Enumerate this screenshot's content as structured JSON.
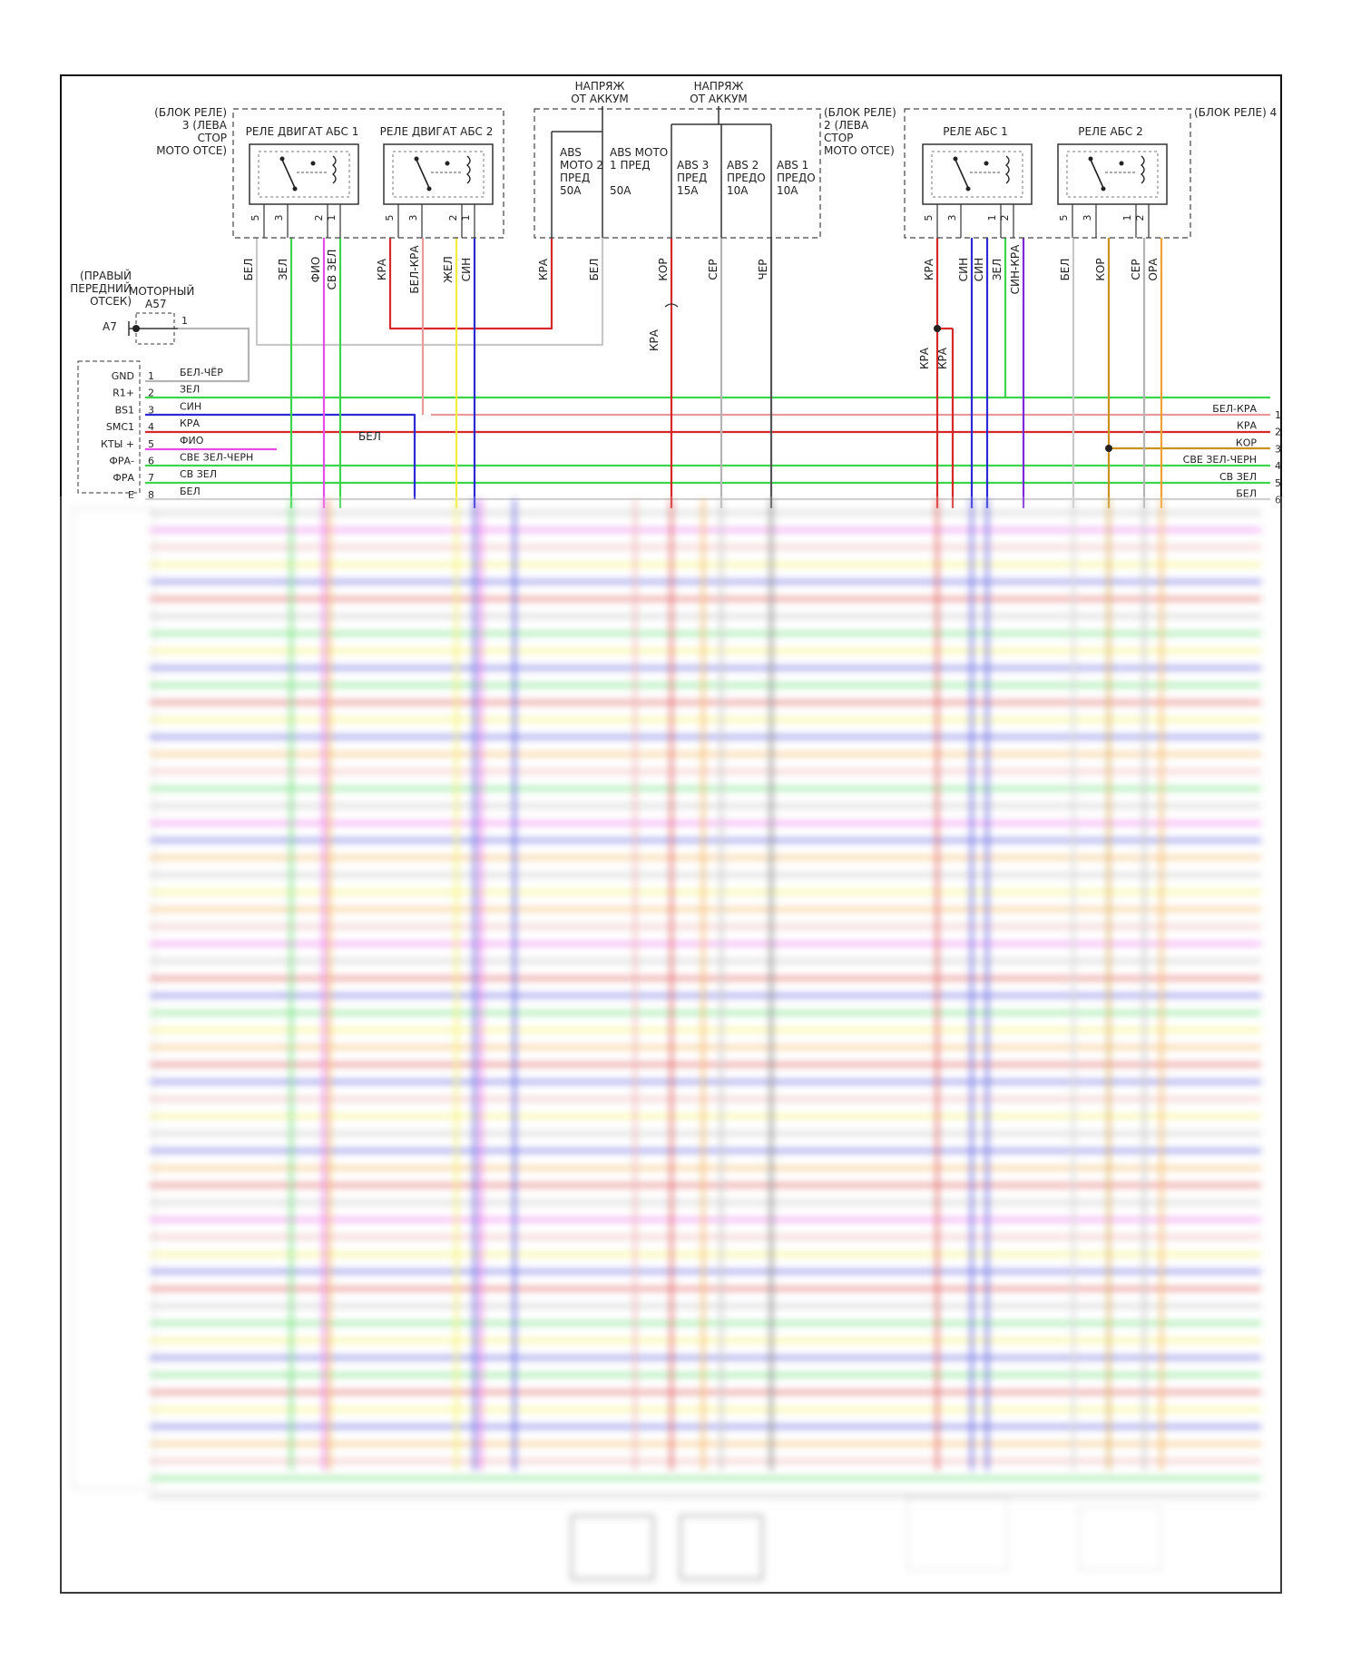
{
  "wire_colors": {
    "white": "#c8c8c8",
    "green": "#3bd44a",
    "violet": "#e84be8",
    "red": "#d62828",
    "yellow": "#f2ee3a",
    "blue": "#2b2bd6",
    "black": "#555555",
    "gray": "#b4b4b4",
    "brown": "#c9911d",
    "orange": "#f0a030",
    "pink": "#e89a9a",
    "purple": "#7a2bd6"
  },
  "relay_block_3": {
    "label_lines": [
      "(БЛОК РЕЛЕ)",
      "3 (ЛЕВА",
      "СТОР",
      "МОТО ОТСЕ)"
    ],
    "relay1_label": "РЕЛЕ ДВИГАТ АБС 1",
    "relay2_label": "РЕЛЕ ДВИГАТ АБС 2"
  },
  "fuse_block_2": {
    "label_lines": [
      "(БЛОК РЕЛЕ)",
      "2 (ЛЕВА",
      "СТОР",
      "МОТО ОТСЕ)"
    ],
    "batt_label_lines": [
      "НАПРЯЖ",
      "ОТ АККУМ"
    ],
    "fuses": [
      {
        "lines": [
          "ABS",
          "МОТО 2",
          "ПРЕД",
          "50A"
        ]
      },
      {
        "lines": [
          "ABS МОТО",
          "1 ПРЕД",
          "",
          "50A"
        ]
      },
      {
        "lines": [
          "ABS 3",
          "ПРЕД",
          "15A"
        ]
      },
      {
        "lines": [
          "ABS 2",
          "ПРЕДО",
          "10A"
        ]
      },
      {
        "lines": [
          "ABS 1",
          "ПРЕДО",
          "10A"
        ]
      }
    ]
  },
  "relay_block_4": {
    "label": "(БЛОК РЕЛЕ) 4",
    "relay1_label": "РЕЛЕ АБС 1",
    "relay2_label": "РЕЛЕ АБС 2"
  },
  "pin_labels": {
    "relay_a": [
      "5",
      "3",
      "2",
      "1"
    ],
    "relay_b": [
      "5",
      "3",
      "1",
      "2"
    ]
  },
  "top_wire_labels": [
    "БЕЛ",
    "ЗЕЛ",
    "ФИО",
    "СВ ЗЕЛ",
    "КРА",
    "БЕЛ-КРА",
    "ЖЕЛ",
    "СИН",
    "КРА",
    "БЕЛ",
    "КОР",
    "СЕР",
    "ЧЕР",
    "КРА",
    "СИН",
    "СИН",
    "ЗЕЛ",
    "СИН-КРА",
    "БЕЛ",
    "КОР",
    "СЕР",
    "ОРА"
  ],
  "mid_wire_labels": [
    "КРА",
    "КРА",
    "КРА"
  ],
  "ground": {
    "location_lines": [
      "(ПРАВЫЙ",
      "ПЕРЕДНИЙ",
      "ОТСЕК)"
    ],
    "compartment": "МОТОРНЫЙ",
    "connector": "A57",
    "ground_id": "A7",
    "pin": "1"
  },
  "left_connector": {
    "pins": [
      {
        "name": "GND",
        "num": "1",
        "wire": "БЕЛ-ЧЁР"
      },
      {
        "name": "R1+",
        "num": "2",
        "wire": "ЗЕЛ"
      },
      {
        "name": "BS1",
        "num": "3",
        "wire": "СИН"
      },
      {
        "name": "SMC1",
        "num": "4",
        "wire": "КРА"
      },
      {
        "name": "КТЫ +",
        "num": "5",
        "wire": "ФИО"
      },
      {
        "name": "ФРА-",
        "num": "6",
        "wire": "СВЕ ЗЕЛ-ЧЕРН"
      },
      {
        "name": "ФРА",
        "num": "7",
        "wire": "СВ ЗЕЛ"
      },
      {
        "name": "E",
        "num": "8",
        "wire": "БЕЛ"
      }
    ],
    "extra_label": "БЕЛ"
  },
  "right_connector": {
    "pins": [
      {
        "num": "1",
        "wire": "БЕЛ-КРА"
      },
      {
        "num": "2",
        "wire": "КРА"
      },
      {
        "num": "3",
        "wire": "КОР"
      },
      {
        "num": "4",
        "wire": "СВЕ ЗЕЛ-ЧЕРН"
      },
      {
        "num": "5",
        "wire": "СВ ЗЕЛ"
      },
      {
        "num": "6",
        "wire": "БЕЛ"
      }
    ]
  }
}
